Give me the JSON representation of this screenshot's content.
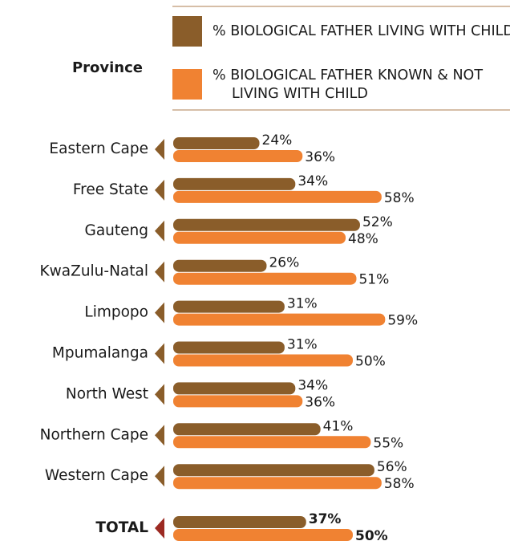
{
  "chart_data": {
    "type": "hbar",
    "header": "Province",
    "categories": [
      "Eastern Cape",
      "Free State",
      "Gauteng",
      "KwaZulu-Natal",
      "Limpopo",
      "Mpumalanga",
      "North West",
      "Northern Cape",
      "Western Cape",
      "TOTAL"
    ],
    "series": [
      {
        "name": "% BIOLOGICAL FATHER LIVING WITH CHILD",
        "color": "#8a5d2a",
        "values": [
          24,
          34,
          52,
          26,
          31,
          31,
          34,
          41,
          56,
          37
        ],
        "value_labels": [
          "24%",
          "34%",
          "52%",
          "26%",
          "31%",
          "31%",
          "34%",
          "41%",
          "56%",
          "37%"
        ]
      },
      {
        "name": "% BIOLOGICAL FATHER KNOWN & NOT LIVING WITH CHILD",
        "color": "#f08232",
        "values": [
          36,
          58,
          48,
          51,
          59,
          50,
          36,
          55,
          58,
          50
        ],
        "value_labels": [
          "36%",
          "58%",
          "48%",
          "51%",
          "59%",
          "50%",
          "36%",
          "55%",
          "58%",
          "50%"
        ]
      }
    ]
  }
}
